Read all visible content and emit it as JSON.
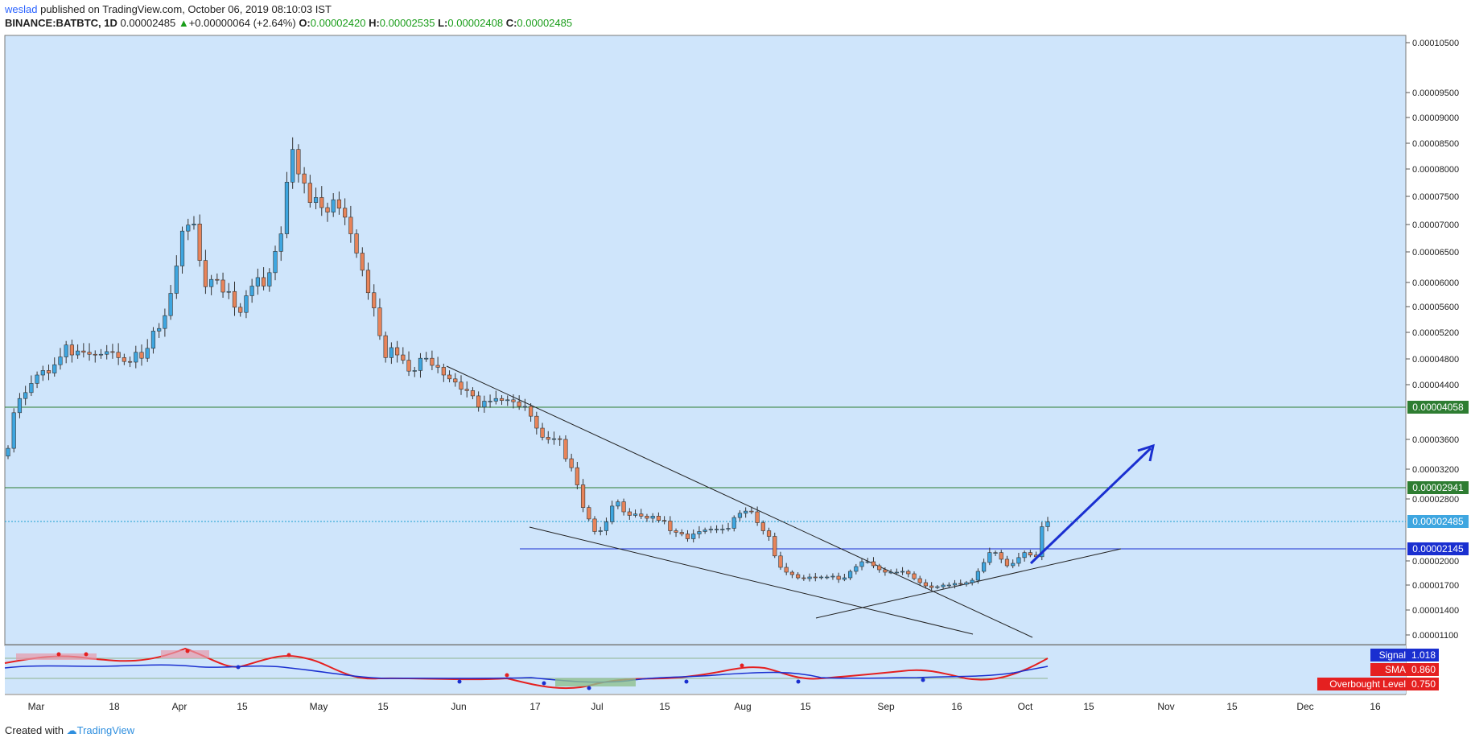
{
  "header": {
    "author": "weslad",
    "published_text": "published on TradingView.com, October 06, 2019 08:10:03 IST",
    "symbol": "BINANCE:BATBTC, 1D",
    "last": "0.00002485",
    "change_arrow": "▲",
    "change": "+0.00000064 (+2.64%)",
    "o_label": "O:",
    "o": "0.00002420",
    "h_label": "H:",
    "h": "0.00002535",
    "l_label": "L:",
    "l": "0.00002408",
    "c_label": "C:",
    "c": "0.00002485"
  },
  "footer": {
    "created_with": "Created with",
    "brand": "TradingView"
  },
  "colors": {
    "background": "#cfe5fb",
    "up": "#3ea6e0",
    "down": "#e8845a",
    "support": "#2e7d32",
    "level": "#1a2fd0",
    "arrow": "#1a2fd0"
  },
  "chart_data": {
    "type": "candlestick",
    "title": "BINANCE:BATBTC, 1D",
    "ylim": [
      9e-06,
      0.000108
    ],
    "price_ticks": [
      "0.00010500",
      "0.00009500",
      "0.00009000",
      "0.00008500",
      "0.00008000",
      "0.00007500",
      "0.00007000",
      "0.00006500",
      "0.00006000",
      "0.00005600",
      "0.00005200",
      "0.00004800",
      "0.00004400",
      "0.00004058",
      "0.00003600",
      "0.00003200",
      "0.00002941",
      "0.00002800",
      "0.00002485",
      "0.00002145",
      "0.00002000",
      "0.00001700",
      "0.00001400",
      "0.00001100"
    ],
    "x_ticks": [
      "Mar",
      "18",
      "Apr",
      "15",
      "May",
      "15",
      "Jun",
      "17",
      "Jul",
      "15",
      "Aug",
      "15",
      "Sep",
      "16",
      "Oct",
      "15",
      "Nov",
      "15",
      "Dec",
      "16"
    ],
    "closes": [
      3.48e-05,
      3.98e-05,
      4.19e-05,
      4.28e-05,
      4.42e-05,
      4.55e-05,
      4.62e-05,
      4.58e-05,
      4.71e-05,
      4.83e-05,
      5.01e-05,
      4.86e-05,
      4.92e-05,
      4.9e-05,
      4.87e-05,
      4.86e-05,
      4.87e-05,
      4.91e-05,
      4.9e-05,
      4.82e-05,
      4.76e-05,
      4.75e-05,
      4.9e-05,
      4.81e-05,
      4.96e-05,
      5.22e-05,
      5.26e-05,
      5.46e-05,
      5.82e-05,
      6.27e-05,
      6.88e-05,
      6.99e-05,
      7.01e-05,
      6.36e-05,
      5.93e-05,
      6.05e-05,
      6.04e-05,
      5.84e-05,
      5.85e-05,
      5.59e-05,
      5.51e-05,
      5.78e-05,
      5.94e-05,
      6.08e-05,
      5.94e-05,
      6.16e-05,
      6.51e-05,
      6.83e-05,
      7.76e-05,
      8.38e-05,
      7.91e-05,
      7.74e-05,
      7.39e-05,
      7.48e-05,
      7.3e-05,
      7.22e-05,
      7.44e-05,
      7.29e-05,
      7.13e-05,
      6.83e-05,
      6.48e-05,
      6.2e-05,
      5.83e-05,
      5.58e-05,
      5.15e-05,
      4.82e-05,
      4.97e-05,
      4.86e-05,
      4.78e-05,
      4.61e-05,
      4.62e-05,
      4.81e-05,
      4.81e-05,
      4.7e-05,
      4.67e-05,
      4.55e-05,
      4.49e-05,
      4.44e-05,
      4.33e-05,
      4.31e-05,
      4.23e-05,
      4.06e-05,
      4.15e-05,
      4.15e-05,
      4.19e-05,
      4.16e-05,
      4.17e-05,
      4.14e-05,
      4.07e-05,
      4.07e-05,
      3.93e-05,
      3.76e-05,
      3.63e-05,
      3.6e-05,
      3.61e-05,
      3.6e-05,
      3.34e-05,
      3.22e-05,
      2.98e-05,
      2.68e-05,
      2.52e-05,
      2.36e-05,
      2.37e-05,
      2.48e-05,
      2.7e-05,
      2.76e-05,
      2.62e-05,
      2.57e-05,
      2.59e-05,
      2.56e-05,
      2.53e-05,
      2.56e-05,
      2.5e-05,
      2.49e-05,
      2.37e-05,
      2.35e-05,
      2.33e-05,
      2.27e-05,
      2.33e-05,
      2.36e-05,
      2.38e-05,
      2.39e-05,
      2.39e-05,
      2.39e-05,
      2.4e-05,
      2.54e-05,
      2.6e-05,
      2.63e-05,
      2.62e-05,
      2.47e-05,
      2.37e-05,
      2.3e-05,
      2.06e-05,
      1.92e-05,
      1.86e-05,
      1.83e-05,
      1.79e-05,
      1.78e-05,
      1.8e-05,
      1.79e-05,
      1.8e-05,
      1.8e-05,
      1.81e-05,
      1.77e-05,
      1.79e-05,
      1.87e-05,
      1.93e-05,
      1.99e-05,
      1.99e-05,
      1.94e-05,
      1.89e-05,
      1.86e-05,
      1.86e-05,
      1.86e-05,
      1.87e-05,
      1.84e-05,
      1.78e-05,
      1.73e-05,
      1.69e-05,
      1.67e-05,
      1.68e-05,
      1.7e-05,
      1.7e-05,
      1.72e-05,
      1.71e-05,
      1.73e-05,
      1.76e-05,
      1.87e-05,
      1.98e-05,
      2.1e-05,
      2.1e-05,
      2.02e-05,
      1.94e-05,
      1.97e-05,
      2.04e-05,
      2.1e-05,
      2.07e-05,
      2.05e-05,
      2.42e-05,
      2.48e-05
    ]
  },
  "price_labels": {
    "resistance_1": "0.00004058",
    "resistance_2": "0.00002941",
    "last_price": "0.00002485",
    "support_level": "0.00002145"
  },
  "indicator": {
    "signal_label": "Signal",
    "signal_value": "1.018",
    "sma_label": "SMA",
    "sma_value": "0.860",
    "ob_label": "Overbought Level",
    "ob_value": "0.750"
  }
}
